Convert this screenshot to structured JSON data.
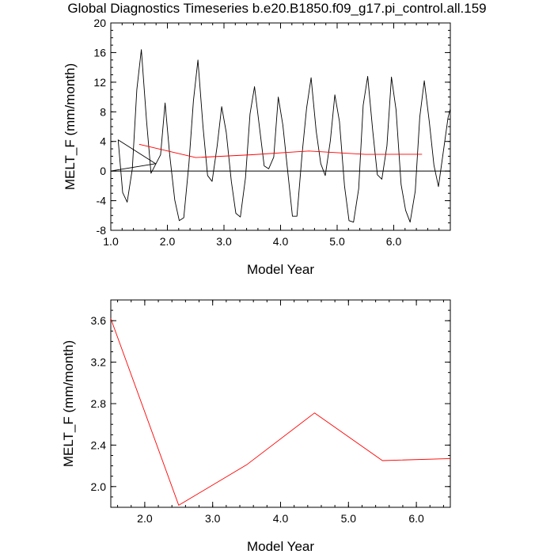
{
  "page": {
    "title": "Global Diagnostics Timeseries b.e20.B1850.f09_g17.pi_control.all.159"
  },
  "chart_data": [
    {
      "type": "line",
      "xlabel": "Model Year",
      "ylabel": "MELT_F (mm/month)",
      "xlim": [
        1.0,
        7.0
      ],
      "ylim": [
        -8,
        20
      ],
      "xticks": [
        1.0,
        2.0,
        3.0,
        4.0,
        5.0,
        6.0
      ],
      "xtick_labels": [
        "1.0",
        "2.0",
        "3.0",
        "4.0",
        "5.0",
        "6.0"
      ],
      "yticks": [
        -8,
        -4,
        0,
        4,
        8,
        12,
        16,
        20
      ],
      "ytick_labels": [
        "-8",
        "-4",
        "0",
        "4",
        "8",
        "12",
        "16",
        "20"
      ],
      "reference_line": 0,
      "series": [
        {
          "color": "#000000",
          "x": [
            1.0,
            1.79,
            1.13,
            1.21,
            1.29,
            1.38,
            1.46,
            1.54,
            1.63,
            1.71,
            1.88,
            1.96,
            2.04,
            2.13,
            2.21,
            2.29,
            2.38,
            2.46,
            2.54,
            2.63,
            2.71,
            2.79,
            2.88,
            2.96,
            3.04,
            3.13,
            3.21,
            3.29,
            3.38,
            3.46,
            3.54,
            3.63,
            3.71,
            3.79,
            3.88,
            3.96,
            4.04,
            4.13,
            4.21,
            4.29,
            4.38,
            4.46,
            4.54,
            4.63,
            4.71,
            4.79,
            4.88,
            4.96,
            5.04,
            5.13,
            5.21,
            5.29,
            5.38,
            5.46,
            5.54,
            5.63,
            5.71,
            5.79,
            5.88,
            5.96,
            6.04,
            6.13,
            6.21,
            6.29,
            6.38,
            6.46,
            6.54,
            6.63,
            6.71,
            6.79,
            6.88,
            6.96,
            7.0
          ],
          "y": [
            0.0,
            1.0,
            4.2,
            -2.9,
            -4.2,
            0.3,
            11.0,
            16.4,
            7.0,
            -0.3,
            2.2,
            9.2,
            2.2,
            -3.9,
            -6.7,
            -6.3,
            1.0,
            9.5,
            15.0,
            6.0,
            -0.6,
            -1.4,
            3.4,
            8.7,
            5.2,
            -1.4,
            -5.7,
            -6.2,
            -0.9,
            7.7,
            11.4,
            5.8,
            0.7,
            0.3,
            1.9,
            10.0,
            6.2,
            -0.3,
            -6.1,
            -6.1,
            2.3,
            8.5,
            12.6,
            5.4,
            1.0,
            -0.6,
            4.1,
            10.3,
            6.7,
            -2.0,
            -6.7,
            -6.9,
            -2.4,
            8.9,
            12.8,
            5.4,
            -0.5,
            -1.1,
            3.4,
            12.7,
            8.3,
            -1.8,
            -5.3,
            -6.9,
            -2.7,
            7.3,
            12.2,
            6.6,
            0.8,
            -2.1,
            2.8,
            7.2,
            8.4
          ]
        },
        {
          "color": "#ff0000",
          "x": [
            1.5,
            2.5,
            3.5,
            4.5,
            5.5,
            6.5
          ],
          "y": [
            3.62,
            1.82,
            2.21,
            2.71,
            2.25,
            2.27
          ]
        }
      ]
    },
    {
      "type": "line",
      "xlabel": "Model Year",
      "ylabel": "MELT_F (mm/month)",
      "xlim": [
        1.5,
        6.5
      ],
      "ylim": [
        1.8,
        3.8
      ],
      "xticks": [
        2.0,
        3.0,
        4.0,
        5.0,
        6.0
      ],
      "xtick_labels": [
        "2.0",
        "3.0",
        "4.0",
        "5.0",
        "6.0"
      ],
      "yticks": [
        2.0,
        2.4,
        2.8,
        3.2,
        3.6
      ],
      "ytick_labels": [
        "2.0",
        "2.4",
        "2.8",
        "3.2",
        "3.6"
      ],
      "series": [
        {
          "color": "#ff0000",
          "x": [
            1.5,
            2.5,
            3.5,
            4.5,
            5.5,
            6.5
          ],
          "y": [
            3.62,
            1.82,
            2.21,
            2.71,
            2.25,
            2.27
          ]
        }
      ]
    }
  ]
}
